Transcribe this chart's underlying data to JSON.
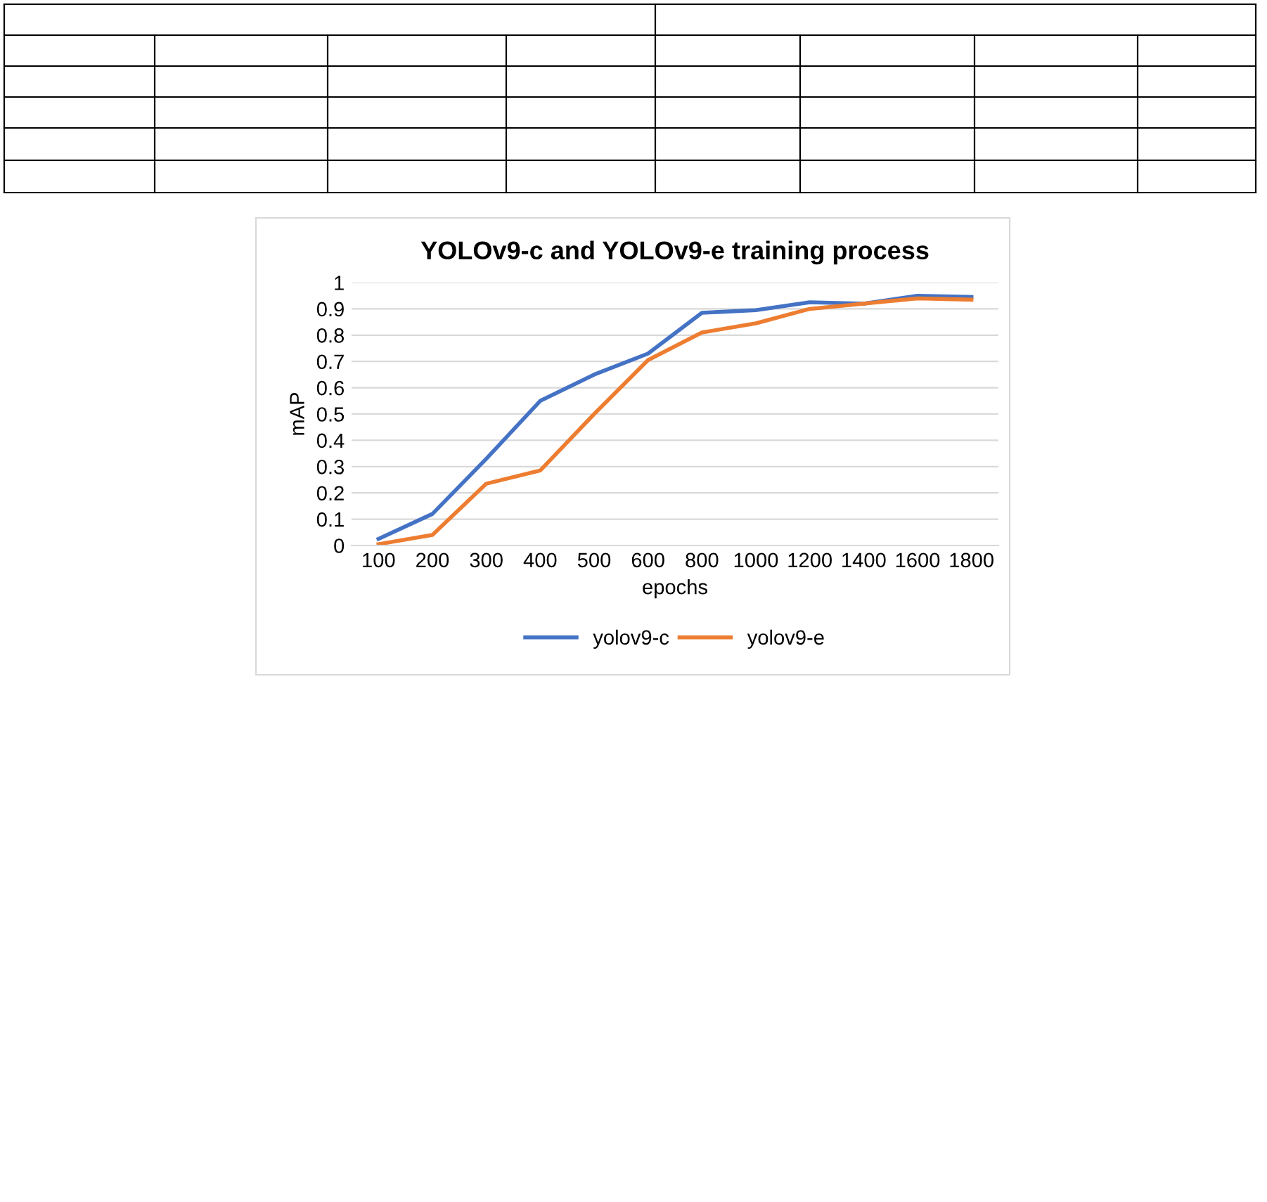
{
  "chart_data": {
    "type": "line",
    "title": "YOLOv9-c and YOLOv9-e training process",
    "xlabel": "epochs",
    "ylabel": "mAP",
    "categories": [
      "100",
      "200",
      "300",
      "400",
      "500",
      "600",
      "800",
      "1000",
      "1200",
      "1400",
      "1600",
      "1800"
    ],
    "series": [
      {
        "name": "yolov9-c",
        "color": "#4472c4",
        "values": [
          0.025,
          0.12,
          0.33,
          0.55,
          0.65,
          0.73,
          0.885,
          0.895,
          0.925,
          0.92,
          0.95,
          0.945
        ]
      },
      {
        "name": "yolov9-e",
        "color": "#ed7d31",
        "values": [
          0.005,
          0.04,
          0.235,
          0.285,
          0.5,
          0.705,
          0.81,
          0.845,
          0.9,
          0.92,
          0.94,
          0.935
        ]
      }
    ],
    "ylim": [
      0,
      1
    ],
    "yticks": [
      0,
      0.1,
      0.2,
      0.3,
      0.4,
      0.5,
      0.6,
      0.7,
      0.8,
      0.9,
      1
    ],
    "grid": "y",
    "legend": "bottom",
    "marker": "none",
    "line_style": "solid"
  }
}
